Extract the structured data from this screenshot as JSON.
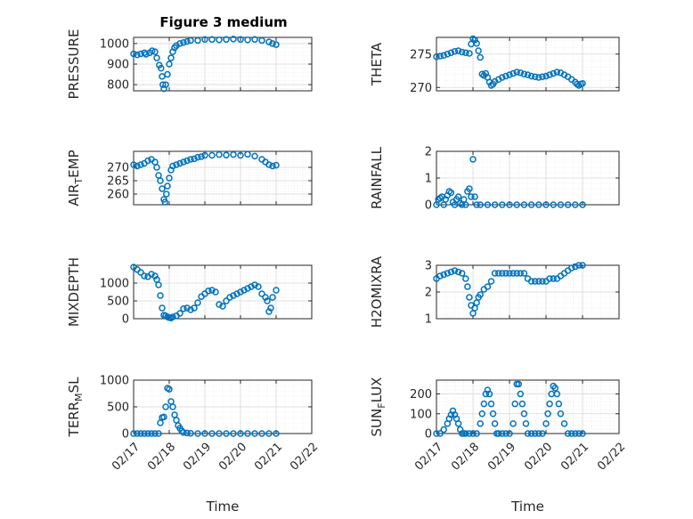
{
  "figure_title": "Figure 3 medium",
  "colors": {
    "marker": "#0072BD",
    "axis": "#262626",
    "grid": "#d9d9d9"
  },
  "chart_data": [
    {
      "type": "scatter",
      "title": "Figure 3 medium",
      "ylabel": "PRESSURE",
      "xlabel": "",
      "xlim": [
        0,
        5
      ],
      "ylim": [
        770,
        1030
      ],
      "yticks": [
        800,
        900,
        1000
      ],
      "xticklabels": [],
      "grid": true,
      "marker": "circle",
      "x": [
        0.0,
        0.1,
        0.2,
        0.3,
        0.35,
        0.45,
        0.52,
        0.6,
        0.65,
        0.72,
        0.77,
        0.8,
        0.82,
        0.85,
        0.9,
        0.95,
        1.0,
        1.05,
        1.1,
        1.15,
        1.2,
        1.3,
        1.4,
        1.5,
        1.6,
        1.8,
        2.0,
        2.2,
        2.4,
        2.6,
        2.8,
        3.0,
        3.2,
        3.4,
        3.6,
        3.8,
        3.9,
        4.0
      ],
      "y": [
        950,
        945,
        950,
        955,
        948,
        955,
        965,
        960,
        930,
        895,
        880,
        840,
        800,
        780,
        800,
        850,
        900,
        930,
        960,
        980,
        990,
        1000,
        1005,
        1010,
        1015,
        1015,
        1020,
        1020,
        1018,
        1020,
        1022,
        1020,
        1018,
        1020,
        1015,
        1008,
        1000,
        995
      ]
    },
    {
      "type": "scatter",
      "ylabel": "THETA",
      "xlabel": "",
      "xlim": [
        0,
        5
      ],
      "ylim": [
        269.5,
        277.5
      ],
      "yticks": [
        270,
        275
      ],
      "xticklabels": [],
      "grid": true,
      "marker": "circle",
      "x": [
        0.0,
        0.1,
        0.2,
        0.3,
        0.4,
        0.5,
        0.6,
        0.7,
        0.8,
        0.9,
        0.95,
        1.0,
        1.05,
        1.1,
        1.15,
        1.2,
        1.25,
        1.3,
        1.35,
        1.4,
        1.45,
        1.5,
        1.55,
        1.6,
        1.7,
        1.8,
        1.9,
        2.0,
        2.1,
        2.2,
        2.3,
        2.4,
        2.5,
        2.6,
        2.7,
        2.8,
        2.9,
        3.0,
        3.1,
        3.2,
        3.3,
        3.4,
        3.5,
        3.6,
        3.7,
        3.8,
        3.85,
        3.9,
        3.95,
        4.0
      ],
      "y": [
        274.6,
        274.7,
        274.8,
        275.0,
        275.2,
        275.4,
        275.5,
        275.3,
        275.2,
        275.1,
        276.5,
        277.3,
        277.1,
        276.6,
        275.5,
        274.5,
        272.0,
        271.8,
        272.1,
        271.5,
        270.8,
        270.3,
        270.5,
        270.9,
        271.2,
        271.5,
        271.7,
        271.9,
        272.1,
        272.3,
        272.2,
        272.0,
        271.9,
        271.7,
        271.6,
        271.5,
        271.6,
        271.7,
        271.9,
        272.1,
        272.3,
        272.2,
        271.9,
        271.6,
        271.2,
        270.8,
        270.5,
        270.3,
        270.5,
        270.6
      ]
    },
    {
      "type": "scatter",
      "ylabel": "AIR",
      "ylabel_sub": "T",
      "ylabel_rest": "EMP",
      "xlabel": "",
      "xlim": [
        0,
        5
      ],
      "ylim": [
        256,
        276
      ],
      "yticks": [
        260,
        265,
        270
      ],
      "xticklabels": [],
      "grid": true,
      "marker": "circle",
      "x": [
        0.0,
        0.1,
        0.2,
        0.3,
        0.4,
        0.5,
        0.6,
        0.65,
        0.7,
        0.75,
        0.8,
        0.85,
        0.88,
        0.92,
        0.95,
        1.0,
        1.05,
        1.1,
        1.2,
        1.3,
        1.4,
        1.5,
        1.6,
        1.7,
        1.8,
        1.9,
        2.0,
        2.2,
        2.4,
        2.6,
        2.8,
        3.0,
        3.2,
        3.4,
        3.6,
        3.7,
        3.8,
        3.9,
        4.0
      ],
      "y": [
        271,
        270.5,
        271,
        271.5,
        272.5,
        273,
        272,
        270,
        267,
        265,
        262,
        258,
        257,
        260,
        263,
        266,
        269,
        270.5,
        271,
        271.5,
        272,
        272.5,
        273,
        273.2,
        273.8,
        274,
        274.5,
        274.5,
        274.8,
        274.6,
        274.8,
        274.5,
        274.9,
        274.2,
        273,
        272,
        271,
        270.5,
        270.8
      ]
    },
    {
      "type": "scatter",
      "ylabel": "RAINFALL",
      "xlabel": "",
      "xlim": [
        0,
        5
      ],
      "ylim": [
        0,
        2
      ],
      "yticks": [
        0,
        1,
        2
      ],
      "xticklabels": [],
      "grid": true,
      "marker": "circle",
      "x": [
        0.0,
        0.05,
        0.1,
        0.15,
        0.2,
        0.25,
        0.3,
        0.35,
        0.4,
        0.45,
        0.5,
        0.55,
        0.6,
        0.65,
        0.7,
        0.75,
        0.8,
        0.85,
        0.9,
        0.95,
        1.0,
        1.05,
        1.1,
        1.2,
        1.4,
        1.6,
        1.8,
        2.0,
        2.2,
        2.4,
        2.6,
        2.8,
        3.0,
        3.2,
        3.4,
        3.6,
        3.8,
        4.0
      ],
      "y": [
        0.0,
        0.2,
        0.25,
        0.3,
        0.0,
        0.2,
        0.35,
        0.5,
        0.45,
        0.1,
        0.0,
        0.2,
        0.3,
        0.05,
        0.0,
        0.2,
        0.0,
        0.5,
        0.6,
        0.3,
        1.7,
        0.3,
        0.0,
        0.0,
        0.0,
        0.0,
        0.0,
        0.0,
        0.0,
        0.0,
        0.0,
        0.0,
        0.0,
        0.0,
        0.0,
        0.0,
        0.0,
        0.0
      ]
    },
    {
      "type": "scatter",
      "ylabel": "MIXDEPTH",
      "xlabel": "",
      "xlim": [
        0,
        5
      ],
      "ylim": [
        0,
        1500
      ],
      "yticks": [
        0,
        500,
        1000
      ],
      "xticklabels": [],
      "grid": true,
      "marker": "circle",
      "x": [
        0.0,
        0.1,
        0.2,
        0.3,
        0.4,
        0.5,
        0.6,
        0.65,
        0.7,
        0.75,
        0.8,
        0.85,
        0.9,
        0.95,
        1.0,
        1.05,
        1.1,
        1.2,
        1.3,
        1.4,
        1.5,
        1.6,
        1.7,
        1.8,
        1.9,
        2.0,
        2.1,
        2.2,
        2.3,
        2.4,
        2.5,
        2.6,
        2.7,
        2.8,
        2.9,
        3.0,
        3.1,
        3.2,
        3.3,
        3.4,
        3.5,
        3.6,
        3.7,
        3.75,
        3.8,
        3.85,
        3.9,
        4.0
      ],
      "y": [
        1450,
        1380,
        1300,
        1200,
        1180,
        1250,
        1200,
        1100,
        950,
        650,
        300,
        100,
        80,
        50,
        30,
        20,
        50,
        80,
        150,
        280,
        300,
        250,
        300,
        450,
        620,
        700,
        780,
        800,
        750,
        400,
        350,
        500,
        600,
        650,
        700,
        750,
        800,
        850,
        900,
        950,
        900,
        700,
        600,
        500,
        200,
        300,
        600,
        800
      ]
    },
    {
      "type": "scatter",
      "ylabel": "H2OMIXRA",
      "xlabel": "",
      "xlim": [
        0,
        5
      ],
      "ylim": [
        1,
        3
      ],
      "yticks": [
        1,
        2,
        3
      ],
      "xticklabels": [],
      "grid": true,
      "marker": "circle",
      "x": [
        0.0,
        0.1,
        0.2,
        0.3,
        0.4,
        0.5,
        0.6,
        0.7,
        0.8,
        0.85,
        0.9,
        0.95,
        1.0,
        1.05,
        1.1,
        1.15,
        1.2,
        1.3,
        1.4,
        1.5,
        1.6,
        1.7,
        1.8,
        1.9,
        2.0,
        2.1,
        2.2,
        2.3,
        2.4,
        2.5,
        2.6,
        2.7,
        2.8,
        2.9,
        3.0,
        3.1,
        3.2,
        3.3,
        3.4,
        3.5,
        3.6,
        3.7,
        3.8,
        3.9,
        4.0
      ],
      "y": [
        2.5,
        2.6,
        2.65,
        2.7,
        2.75,
        2.8,
        2.75,
        2.7,
        2.5,
        2.2,
        1.8,
        1.5,
        1.2,
        1.4,
        1.6,
        1.8,
        1.9,
        2.1,
        2.2,
        2.4,
        2.7,
        2.7,
        2.7,
        2.7,
        2.7,
        2.7,
        2.7,
        2.7,
        2.7,
        2.5,
        2.4,
        2.4,
        2.4,
        2.4,
        2.4,
        2.5,
        2.5,
        2.5,
        2.6,
        2.7,
        2.8,
        2.9,
        2.95,
        3.0,
        3.0
      ]
    },
    {
      "type": "scatter",
      "ylabel": "TERR",
      "ylabel_sub": "M",
      "ylabel_rest": "SL",
      "xlabel": "Time",
      "xlim": [
        0,
        5
      ],
      "ylim": [
        0,
        1000
      ],
      "yticks": [
        0,
        500,
        1000
      ],
      "xticklabels": [
        "02/17",
        "02/18",
        "02/19",
        "02/20",
        "02/21",
        "02/22"
      ],
      "grid": true,
      "marker": "circle",
      "x": [
        0.0,
        0.1,
        0.2,
        0.3,
        0.4,
        0.5,
        0.6,
        0.7,
        0.75,
        0.8,
        0.85,
        0.9,
        0.95,
        1.0,
        1.05,
        1.1,
        1.15,
        1.2,
        1.25,
        1.3,
        1.35,
        1.4,
        1.5,
        1.6,
        1.8,
        2.0,
        2.2,
        2.4,
        2.6,
        2.8,
        3.0,
        3.2,
        3.4,
        3.6,
        3.8,
        4.0
      ],
      "y": [
        0,
        0,
        0,
        0,
        0,
        0,
        0,
        0,
        200,
        300,
        310,
        500,
        850,
        830,
        600,
        500,
        350,
        250,
        150,
        100,
        50,
        20,
        10,
        5,
        0,
        0,
        0,
        0,
        0,
        0,
        0,
        0,
        0,
        0,
        0,
        0
      ]
    },
    {
      "type": "scatter",
      "ylabel": "SUN",
      "ylabel_sub": "F",
      "ylabel_rest": "LUX",
      "xlabel": "Time",
      "xlim": [
        0,
        5
      ],
      "ylim": [
        0,
        270
      ],
      "yticks": [
        0,
        100,
        200
      ],
      "xticklabels": [
        "02/17",
        "02/18",
        "02/19",
        "02/20",
        "02/21",
        "02/22"
      ],
      "grid": true,
      "marker": "circle",
      "x": [
        0.0,
        0.1,
        0.2,
        0.3,
        0.35,
        0.4,
        0.45,
        0.5,
        0.55,
        0.6,
        0.65,
        0.7,
        0.75,
        0.8,
        0.9,
        1.0,
        1.1,
        1.2,
        1.25,
        1.3,
        1.35,
        1.4,
        1.45,
        1.5,
        1.55,
        1.6,
        1.65,
        1.7,
        1.8,
        1.9,
        2.0,
        2.1,
        2.15,
        2.2,
        2.25,
        2.3,
        2.35,
        2.4,
        2.45,
        2.5,
        2.6,
        2.7,
        2.8,
        2.9,
        3.0,
        3.05,
        3.1,
        3.15,
        3.2,
        3.25,
        3.3,
        3.35,
        3.4,
        3.5,
        3.6,
        3.7,
        3.8,
        3.9,
        4.0
      ],
      "y": [
        0,
        0,
        20,
        50,
        75,
        95,
        115,
        95,
        75,
        50,
        20,
        0,
        0,
        0,
        0,
        0,
        0,
        50,
        100,
        150,
        200,
        220,
        200,
        150,
        100,
        50,
        0,
        0,
        0,
        0,
        0,
        50,
        150,
        250,
        250,
        200,
        150,
        100,
        50,
        0,
        0,
        0,
        0,
        0,
        50,
        100,
        150,
        200,
        240,
        230,
        200,
        150,
        100,
        50,
        0,
        0,
        0,
        0,
        0
      ]
    }
  ]
}
